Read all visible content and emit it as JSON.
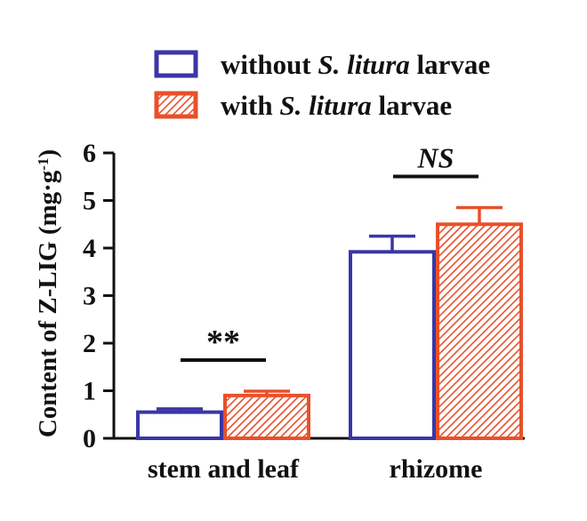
{
  "chart_data": {
    "type": "bar",
    "categories": [
      "stem and leaf",
      "rhizome"
    ],
    "series": [
      {
        "name_parts": [
          "without ",
          "S. litura",
          " larvae"
        ],
        "color": "#3a36a6",
        "fill": "none",
        "values": [
          0.55,
          3.92
        ],
        "errors": [
          0.07,
          0.33
        ]
      },
      {
        "name_parts": [
          "with ",
          "S. litura",
          " larvae"
        ],
        "color": "#e8502a",
        "fill": "hatched",
        "values": [
          0.9,
          4.5
        ],
        "errors": [
          0.09,
          0.35
        ]
      }
    ],
    "significance": [
      "**",
      "NS"
    ],
    "ylabel": "Content of Z-LIG (mg·g",
    "ylabel_sup": "-1",
    "ylabel_close": ")",
    "ylim": [
      0,
      6
    ],
    "yticks": [
      0,
      1,
      2,
      3,
      4,
      5,
      6
    ],
    "legend_position": "top",
    "grid": false
  }
}
